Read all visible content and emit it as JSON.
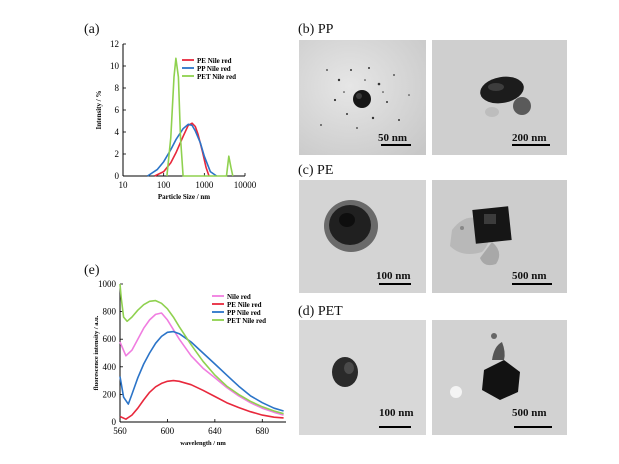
{
  "panels": {
    "a": {
      "label": "(a)"
    },
    "b": {
      "label": "(b) PP",
      "scales": [
        "50 nm",
        "200 nm"
      ]
    },
    "c": {
      "label": "(c) PE",
      "scales": [
        "100 nm",
        "500 nm"
      ]
    },
    "d": {
      "label": "(d) PET",
      "scales": [
        "100 nm",
        "500 nm"
      ]
    },
    "e": {
      "label": "(e)"
    }
  },
  "chart_data": [
    {
      "type": "line",
      "panel": "(a)",
      "xlabel": "Particle Size  / nm",
      "ylabel": "Intensity / %",
      "xscale": "log",
      "xlim": [
        10,
        10000
      ],
      "ylim": [
        0,
        12
      ],
      "xticks": [
        10,
        100,
        1000,
        10000
      ],
      "xtick_labels": [
        "10",
        "100",
        "1000",
        "10000"
      ],
      "yticks": [
        0,
        2,
        4,
        6,
        8,
        10,
        12
      ],
      "legend_position": "top-right",
      "series": [
        {
          "name": "PE Nile red",
          "color": "#e8283c",
          "x": [
            60,
            100,
            150,
            200,
            300,
            400,
            500,
            600,
            700,
            900,
            1100,
            1300
          ],
          "y": [
            0,
            0.4,
            1.2,
            2.1,
            3.6,
            4.6,
            4.8,
            4.5,
            3.8,
            2.2,
            0.8,
            0
          ]
        },
        {
          "name": "PP Nile red",
          "color": "#2b74c8",
          "x": [
            40,
            70,
            100,
            150,
            200,
            300,
            400,
            500,
            600,
            800,
            1000,
            1400,
            2000
          ],
          "y": [
            0,
            0.6,
            1.3,
            2.4,
            3.3,
            4.3,
            4.7,
            4.6,
            4.1,
            3.0,
            1.8,
            0.4,
            0
          ]
        },
        {
          "name": "PET Nile red",
          "color": "#8fd14f",
          "x": [
            120,
            150,
            180,
            200,
            230,
            260,
            300,
            3500,
            4000,
            4500,
            5000
          ],
          "y": [
            0,
            3.5,
            9.0,
            10.7,
            9.0,
            3.5,
            0,
            0,
            1.8,
            0.8,
            0
          ]
        }
      ]
    },
    {
      "type": "line",
      "panel": "(e)",
      "xlabel": "wavelength  / nm",
      "ylabel": "fluorescence intensity / a.u.",
      "xlim": [
        560,
        700
      ],
      "ylim": [
        0,
        1000
      ],
      "xticks": [
        560,
        600,
        640,
        680
      ],
      "xtick_labels": [
        "560",
        "600",
        "640",
        "680"
      ],
      "yticks": [
        0,
        200,
        400,
        600,
        800,
        1000
      ],
      "legend_position": "top-right",
      "series": [
        {
          "name": "Nile red",
          "color": "#f07de0",
          "x": [
            560,
            565,
            570,
            575,
            580,
            585,
            590,
            595,
            600,
            610,
            620,
            630,
            640,
            650,
            660,
            670,
            680,
            690,
            698
          ],
          "y": [
            580,
            480,
            520,
            600,
            680,
            740,
            780,
            790,
            740,
            600,
            480,
            390,
            320,
            250,
            190,
            140,
            100,
            70,
            50
          ]
        },
        {
          "name": "PE Nile red",
          "color": "#e8283c",
          "x": [
            560,
            565,
            570,
            575,
            580,
            585,
            590,
            595,
            600,
            605,
            610,
            620,
            630,
            640,
            650,
            660,
            670,
            680,
            690,
            698
          ],
          "y": [
            40,
            20,
            50,
            100,
            160,
            215,
            255,
            280,
            295,
            300,
            295,
            270,
            230,
            185,
            140,
            105,
            75,
            50,
            35,
            30
          ]
        },
        {
          "name": "PP Nile red",
          "color": "#2b74c8",
          "x": [
            560,
            563,
            567,
            570,
            575,
            580,
            585,
            590,
            595,
            600,
            605,
            610,
            620,
            630,
            640,
            650,
            660,
            670,
            680,
            690,
            698
          ],
          "y": [
            330,
            180,
            130,
            200,
            320,
            420,
            500,
            570,
            620,
            650,
            655,
            640,
            580,
            500,
            420,
            340,
            260,
            190,
            140,
            100,
            80
          ]
        },
        {
          "name": "PET Nile red",
          "color": "#8fd14f",
          "x": [
            560,
            561,
            563,
            566,
            570,
            575,
            580,
            585,
            590,
            595,
            600,
            605,
            610,
            620,
            630,
            640,
            650,
            660,
            670,
            680,
            690,
            698
          ],
          "y": [
            1000,
            900,
            760,
            730,
            760,
            810,
            850,
            875,
            880,
            860,
            820,
            760,
            690,
            560,
            440,
            340,
            260,
            200,
            150,
            110,
            80,
            60
          ]
        }
      ]
    }
  ]
}
